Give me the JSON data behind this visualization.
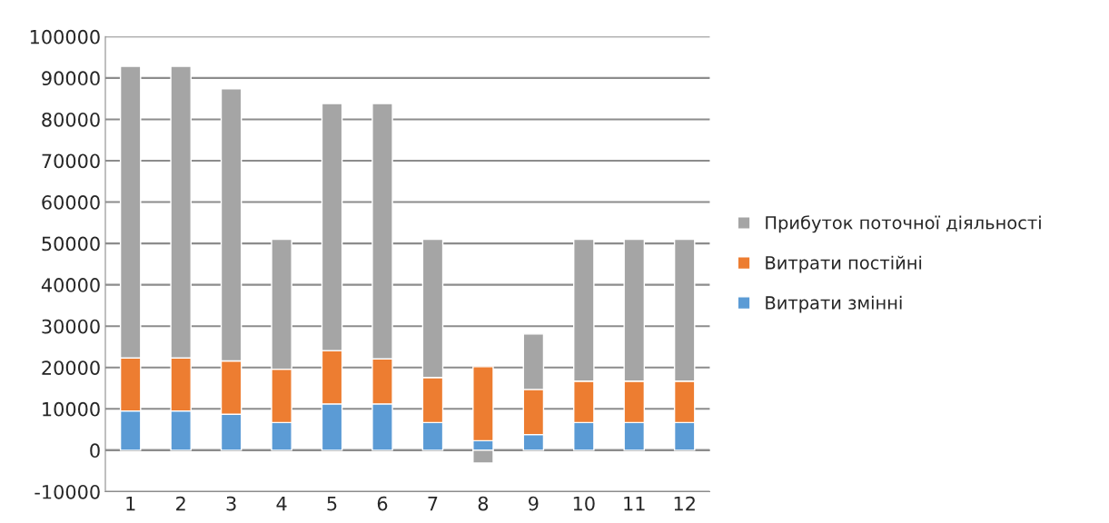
{
  "chart_data": {
    "type": "bar",
    "stacked": true,
    "categories": [
      "1",
      "2",
      "3",
      "4",
      "5",
      "6",
      "7",
      "8",
      "9",
      "10",
      "11",
      "12"
    ],
    "series": [
      {
        "name": "Витрати змінні",
        "color": "#5b9bd5",
        "values": [
          9500,
          9500,
          8700,
          6700,
          11200,
          11200,
          6700,
          2300,
          3800,
          6700,
          6700,
          6700
        ]
      },
      {
        "name": "Витрати постійні",
        "color": "#ed7d31",
        "values": [
          12800,
          12800,
          12900,
          12900,
          12900,
          10900,
          10900,
          17900,
          10900,
          10000,
          10000,
          10000
        ]
      },
      {
        "name": "Прибуток поточної діяльності",
        "color": "#a5a5a5",
        "values": [
          70500,
          70500,
          65800,
          31400,
          59700,
          61700,
          33400,
          -3100,
          13400,
          34300,
          34300,
          34300
        ]
      }
    ],
    "ylim": [
      -10000,
      100000
    ],
    "yticks": [
      -10000,
      0,
      10000,
      20000,
      30000,
      40000,
      50000,
      60000,
      70000,
      80000,
      90000,
      100000
    ],
    "grid": "y",
    "legend": "right"
  }
}
